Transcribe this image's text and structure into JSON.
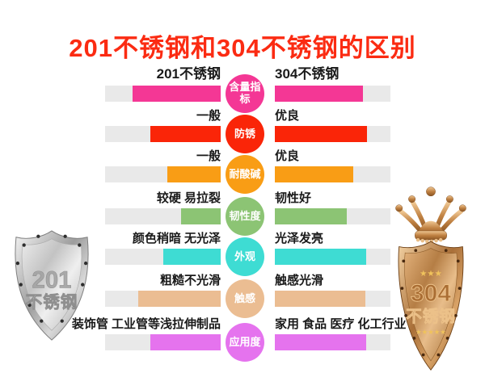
{
  "page": {
    "title": "201不锈钢和304不锈钢的区别",
    "title_color": "#fb2b12",
    "track_color": "#e9e9e9"
  },
  "badges": {
    "left": {
      "number": "201",
      "name": "不锈钢"
    },
    "right": {
      "number": "304",
      "name": "不锈钢",
      "stars_top": "★★★",
      "stars_bottom": "★★★★★"
    }
  },
  "comparison": {
    "rows": [
      {
        "category": "含量指标",
        "color": "#f43795",
        "left_label": "201不锈钢",
        "left_pct": 76,
        "right_label": "304不锈钢",
        "right_pct": 76
      },
      {
        "category": "防锈",
        "color": "#fa2508",
        "left_label": "一般",
        "left_pct": 61,
        "right_label": "优良",
        "right_pct": 80
      },
      {
        "category": "耐酸碱",
        "color": "#f99d15",
        "left_label": "一般",
        "left_pct": 46,
        "right_label": "优良",
        "right_pct": 68
      },
      {
        "category": "韧性度",
        "color": "#8cc474",
        "left_label": "较硬 易拉裂",
        "left_pct": 34,
        "right_label": "韧性好",
        "right_pct": 62
      },
      {
        "category": "外观",
        "color": "#3edcd3",
        "left_label": "颜色稍暗 无光泽",
        "left_pct": 50,
        "right_label": "光泽发亮",
        "right_pct": 79
      },
      {
        "category": "触感",
        "color": "#ebbd92",
        "left_label": "粗糙不光滑",
        "left_pct": 71,
        "right_label": "触感光滑",
        "right_pct": 78
      },
      {
        "category": "应用度",
        "color": "#e573ee",
        "left_label": "装饰管 工业管等浅拉伸制品",
        "left_pct": 61,
        "right_label": "家用 食品 医疗 化工行业",
        "right_pct": 79
      }
    ]
  },
  "chart_data": {
    "type": "bar",
    "orientation": "horizontal-mirrored",
    "title": "201不锈钢和304不锈钢的区别",
    "categories": [
      "含量指标",
      "防锈",
      "耐酸碱",
      "韧性度",
      "外观",
      "触感",
      "应用度"
    ],
    "series": [
      {
        "name": "201不锈钢",
        "values": [
          76,
          61,
          46,
          34,
          50,
          71,
          61
        ],
        "labels": [
          "201不锈钢",
          "一般",
          "一般",
          "较硬 易拉裂",
          "颜色稍暗 无光泽",
          "粗糙不光滑",
          "装饰管 工业管等浅拉伸制品"
        ]
      },
      {
        "name": "304不锈钢",
        "values": [
          76,
          80,
          68,
          62,
          79,
          78,
          79
        ],
        "labels": [
          "304不锈钢",
          "优良",
          "优良",
          "韧性好",
          "光泽发亮",
          "触感光滑",
          "家用 食品 医疗 化工行业"
        ]
      }
    ],
    "value_unit": "estimated % of bar track length (qualitative rating bars, unlabeled axis)",
    "value_range": [
      0,
      100
    ],
    "row_colors": [
      "#f43795",
      "#fa2508",
      "#f99d15",
      "#8cc474",
      "#3edcd3",
      "#ebbd92",
      "#e573ee"
    ],
    "grid": false,
    "legend_position": "inline-row-labels"
  }
}
